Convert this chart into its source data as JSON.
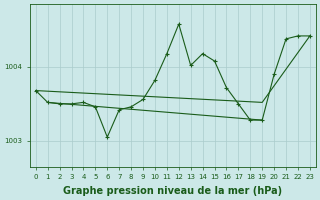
{
  "bg_color": "#cce8e8",
  "grid_color": "#aacccc",
  "line_color": "#1a5c1a",
  "xlabel": "Graphe pression niveau de la mer (hPa)",
  "xlabel_fontsize": 7,
  "ylabel_ticks": [
    1003,
    1004
  ],
  "xlim": [
    -0.5,
    23.5
  ],
  "ylim": [
    1002.65,
    1004.85
  ],
  "xticks": [
    0,
    1,
    2,
    3,
    4,
    5,
    6,
    7,
    8,
    9,
    10,
    11,
    12,
    13,
    14,
    15,
    16,
    17,
    18,
    19,
    20,
    21,
    22,
    23
  ],
  "series": [
    {
      "x": [
        0,
        1,
        2,
        3,
        4,
        5,
        6,
        7,
        8,
        9,
        10,
        11,
        12,
        13,
        14,
        15,
        16,
        17,
        18,
        19,
        20,
        21,
        22,
        23
      ],
      "y": [
        1003.68,
        1003.52,
        1003.5,
        1003.5,
        1003.52,
        1003.46,
        1003.05,
        1003.42,
        1003.46,
        1003.56,
        1003.82,
        1004.18,
        1004.58,
        1004.02,
        1004.18,
        1004.08,
        1003.72,
        1003.5,
        1003.28,
        1003.28,
        1003.9,
        1004.38,
        1004.42,
        1004.42
      ],
      "has_markers": true
    },
    {
      "x": [
        0,
        19,
        23
      ],
      "y": [
        1003.68,
        1003.52,
        1004.42
      ],
      "has_markers": false
    },
    {
      "x": [
        1,
        19
      ],
      "y": [
        1003.52,
        1003.28
      ],
      "has_markers": false
    }
  ]
}
